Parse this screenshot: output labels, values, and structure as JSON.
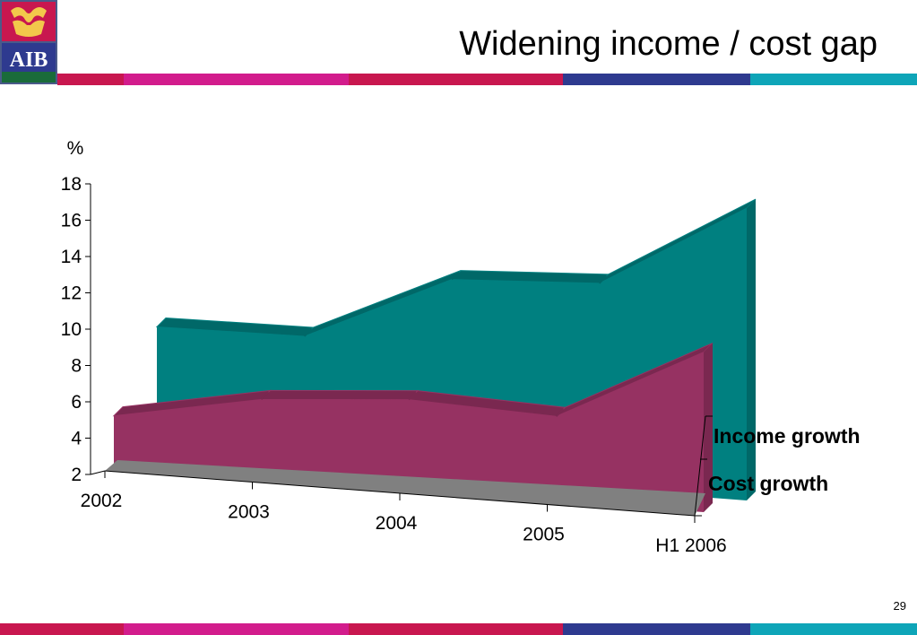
{
  "header": {
    "title": "Widening income / cost gap",
    "logo_text": "AIB"
  },
  "footer": {
    "page_number": "29"
  },
  "colors": {
    "stripe": [
      "#c8174f",
      "#d21c8c",
      "#c8174f",
      "#2e3a8f",
      "#0ea5b8"
    ],
    "income": "#008080",
    "income_top": "#006868",
    "cost": "#963262",
    "cost_top": "#7a2850",
    "floor": "#808080"
  },
  "chart_data": {
    "type": "area",
    "render": "3d-area",
    "categories": [
      "2002",
      "2003",
      "2004",
      "2005",
      "H1 2006"
    ],
    "series": [
      {
        "name": "Income growth",
        "values": [
          9,
          9.1,
          12.8,
          13.2,
          17.9
        ]
      },
      {
        "name": "Cost growth",
        "values": [
          4.8,
          6.3,
          6.9,
          6.6,
          10.7
        ]
      }
    ],
    "ylabel": "%",
    "xlabel": "",
    "ylim": [
      2,
      18
    ],
    "yticks": [
      2,
      4,
      6,
      8,
      10,
      12,
      14,
      16,
      18
    ],
    "legend": "right",
    "grid": false
  }
}
